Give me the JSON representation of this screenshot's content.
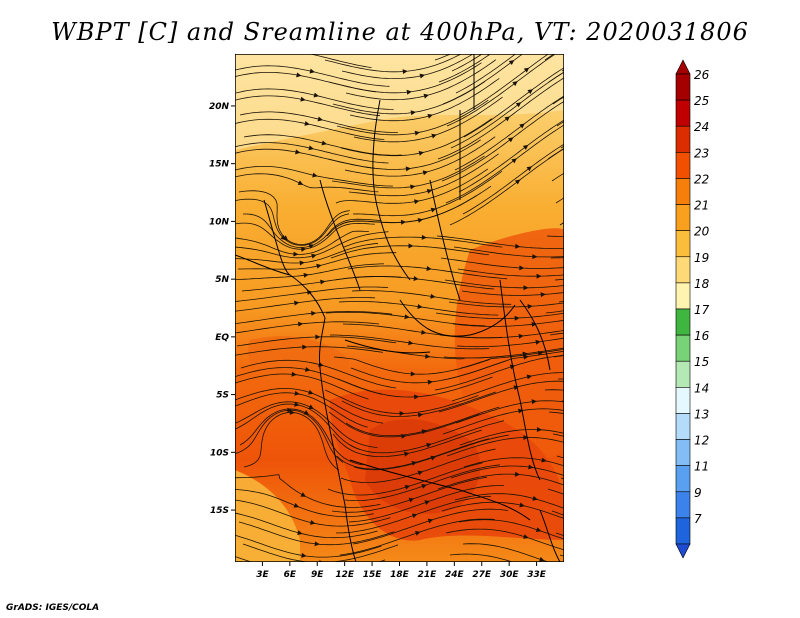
{
  "title": "WBPT [C] and Sreamline at 400hPa, VT: 2020031806",
  "credit": "GrADS: IGES/COLA",
  "map": {
    "lon_range": [
      0,
      36
    ],
    "lat_range": [
      -19.5,
      24.5
    ],
    "lat_ticks": [
      {
        "value": 20,
        "label": "20N"
      },
      {
        "value": 15,
        "label": "15N"
      },
      {
        "value": 10,
        "label": "10N"
      },
      {
        "value": 5,
        "label": "5N"
      },
      {
        "value": 0,
        "label": "EQ"
      },
      {
        "value": -5,
        "label": "5S"
      },
      {
        "value": -10,
        "label": "10S"
      },
      {
        "value": -15,
        "label": "15S"
      }
    ],
    "lon_ticks": [
      {
        "value": 3,
        "label": "3E"
      },
      {
        "value": 6,
        "label": "6E"
      },
      {
        "value": 9,
        "label": "9E"
      },
      {
        "value": 12,
        "label": "12E"
      },
      {
        "value": 15,
        "label": "15E"
      },
      {
        "value": 18,
        "label": "18E"
      },
      {
        "value": 21,
        "label": "21E"
      },
      {
        "value": 24,
        "label": "24E"
      },
      {
        "value": 27,
        "label": "27E"
      },
      {
        "value": 30,
        "label": "30E"
      },
      {
        "value": 33,
        "label": "33E"
      }
    ]
  },
  "colorbar": {
    "levels": [
      {
        "label": "26",
        "color": "#a50000"
      },
      {
        "label": "25",
        "color": "#c00000"
      },
      {
        "label": "24",
        "color": "#dc2d00"
      },
      {
        "label": "23",
        "color": "#f05000"
      },
      {
        "label": "22",
        "color": "#f57f0a"
      },
      {
        "label": "21",
        "color": "#f9a11e"
      },
      {
        "label": "20",
        "color": "#fbbe3c"
      },
      {
        "label": "19",
        "color": "#fdd977"
      },
      {
        "label": "18",
        "color": "#fff3b0"
      },
      {
        "label": "17",
        "color": "#3fb63f"
      },
      {
        "label": "16",
        "color": "#78d278"
      },
      {
        "label": "15",
        "color": "#b4e8b4"
      },
      {
        "label": "14",
        "color": "#e6f8ff"
      },
      {
        "label": "13",
        "color": "#b4dcfa"
      },
      {
        "label": "12",
        "color": "#82bef5"
      },
      {
        "label": "11",
        "color": "#5aa0f0"
      },
      {
        "label": "9",
        "color": "#3c82eb"
      },
      {
        "label": "7",
        "color": "#1e64dc"
      }
    ],
    "lowest_color": "#1e4bd2"
  }
}
